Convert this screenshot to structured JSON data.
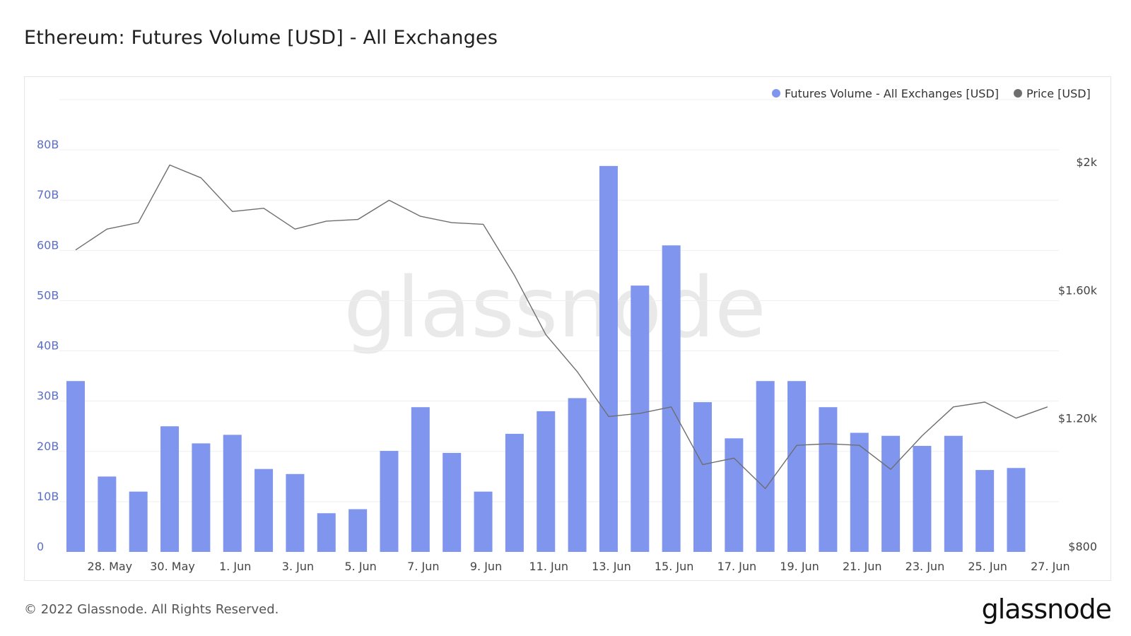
{
  "title": "Ethereum: Futures Volume [USD] - All Exchanges",
  "footer": {
    "copyright": "© 2022 Glassnode. All Rights Reserved.",
    "logo": "glassnode"
  },
  "watermark": "glassnode",
  "colors": {
    "bars": "#8096ee",
    "price": "#6e6e6e",
    "left_axis": "#5b6fc7",
    "grid": "#efefef"
  },
  "chart_data": {
    "type": "bar",
    "legend_position": "top-right",
    "legend": [
      {
        "label": "Futures Volume - All Exchanges [USD]",
        "color": "#8096ee"
      },
      {
        "label": "Price [USD]",
        "color": "#6e6e6e"
      }
    ],
    "x": [
      "27 May",
      "28 May",
      "29 May",
      "30 May",
      "31 May",
      "1 Jun",
      "2 Jun",
      "3 Jun",
      "4 Jun",
      "5 Jun",
      "6 Jun",
      "7 Jun",
      "8 Jun",
      "9 Jun",
      "10 Jun",
      "11 Jun",
      "12 Jun",
      "13 Jun",
      "14 Jun",
      "15 Jun",
      "16 Jun",
      "17 Jun",
      "18 Jun",
      "19 Jun",
      "20 Jun",
      "21 Jun",
      "22 Jun",
      "23 Jun",
      "24 Jun",
      "25 Jun",
      "26 Jun",
      "27 Jun"
    ],
    "x_tick_labels": [
      "28. May",
      "30. May",
      "1. Jun",
      "3. Jun",
      "5. Jun",
      "7. Jun",
      "9. Jun",
      "11. Jun",
      "13. Jun",
      "15. Jun",
      "17. Jun",
      "19. Jun",
      "21. Jun",
      "23. Jun",
      "25. Jun",
      "27. Jun"
    ],
    "x_tick_index": [
      1,
      3,
      5,
      7,
      9,
      11,
      13,
      15,
      17,
      19,
      21,
      23,
      25,
      27,
      29,
      31
    ],
    "series": [
      {
        "name": "Futures Volume - All Exchanges [USD]",
        "type": "bar",
        "axis": "left",
        "values": [
          34,
          15,
          12,
          25,
          21.6,
          23.3,
          16.5,
          15.5,
          7.7,
          8.5,
          20.1,
          28.8,
          19.7,
          12,
          23.5,
          28,
          30.6,
          76.8,
          53,
          61,
          29.8,
          22.6,
          34,
          34,
          28.8,
          23.7,
          23.1,
          21.1,
          23.1,
          16.3,
          16.7,
          null
        ]
      },
      {
        "name": "Price [USD]",
        "type": "line",
        "axis": "right",
        "values": [
          1725,
          1790,
          1810,
          1990,
          1950,
          1845,
          1855,
          1790,
          1815,
          1820,
          1880,
          1830,
          1810,
          1805,
          1645,
          1460,
          1345,
          1205,
          1215,
          1235,
          1055,
          1075,
          980,
          1115,
          1120,
          1115,
          1040,
          1145,
          1235,
          1250,
          1200,
          1235
        ]
      }
    ],
    "y_left": {
      "ticks": [
        "0",
        "10B",
        "20B",
        "30B",
        "40B",
        "50B",
        "60B",
        "70B",
        "80B"
      ],
      "tick_values": [
        0,
        10,
        20,
        30,
        40,
        50,
        60,
        70,
        80
      ],
      "range": [
        0,
        90
      ],
      "unit": "B USD"
    },
    "y_right": {
      "ticks": [
        "$800",
        "$1.20k",
        "$1.60k",
        "$2k"
      ],
      "tick_values": [
        800,
        1200,
        1600,
        2000
      ],
      "range": [
        800,
        2240
      ]
    },
    "grid": true
  }
}
